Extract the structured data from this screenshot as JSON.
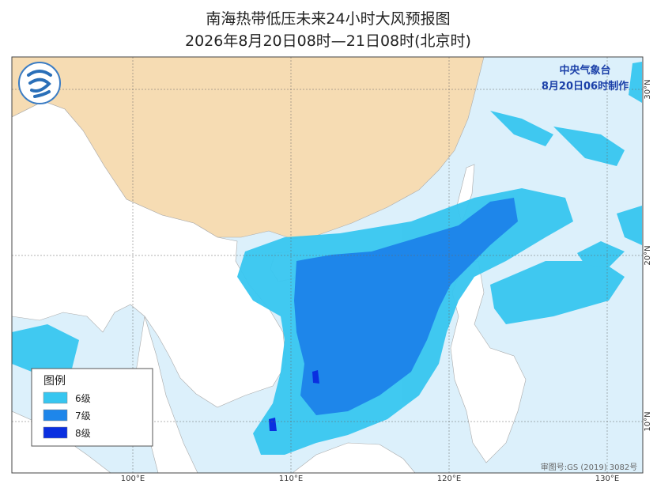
{
  "header": {
    "title": "南海热带低压未来24小时大风预报图",
    "subtitle": "2026年8月20日08时—21日08时(北京时)"
  },
  "agency": {
    "name": "中央气象台",
    "issued": "8月20日06时制作"
  },
  "legend": {
    "title": "图例",
    "items": [
      {
        "label": "6级",
        "color": "#37c6f0"
      },
      {
        "label": "7级",
        "color": "#1e86ea"
      },
      {
        "label": "8级",
        "color": "#0a2fe0"
      }
    ]
  },
  "axes": {
    "longitudes": [
      "100°E",
      "110°E",
      "120°E",
      "130°E"
    ],
    "latitudes": [
      "30°N",
      "20°N",
      "10°N"
    ]
  },
  "review_number": "审图号:GS (2019) 3082号"
}
